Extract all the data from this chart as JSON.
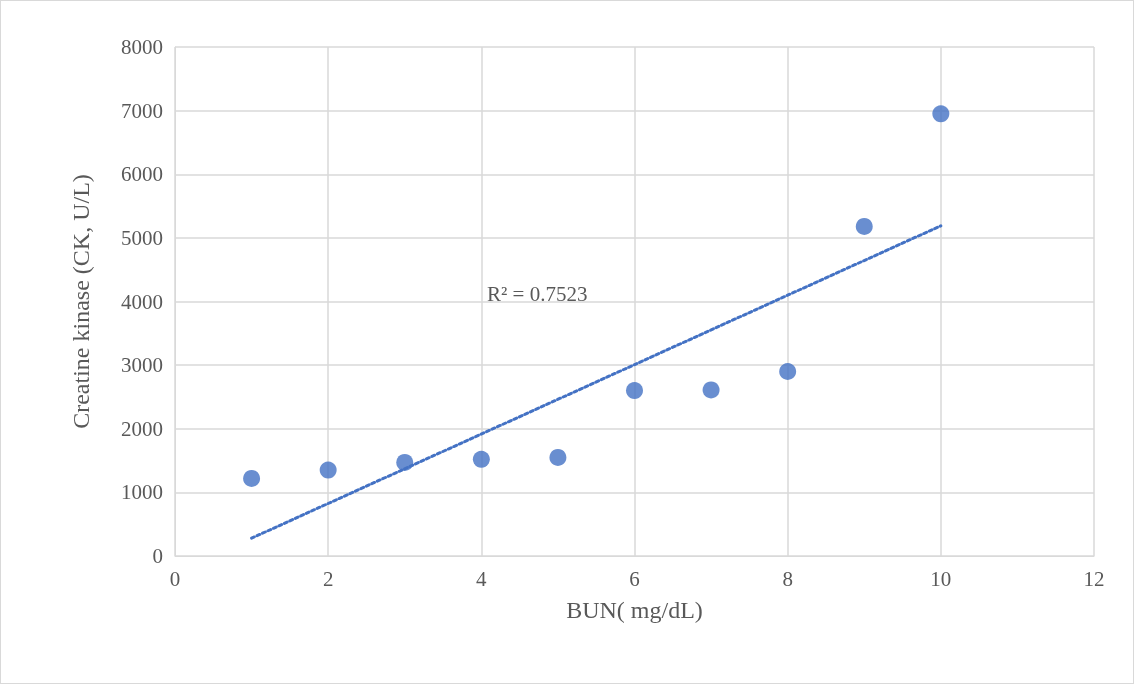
{
  "chart_data": {
    "type": "scatter",
    "xlabel": "BUN( mg/dL)",
    "ylabel": "Creatine kinase (CK, U/L)",
    "xlim": [
      0,
      12
    ],
    "xticks": [
      0,
      2,
      4,
      6,
      8,
      10,
      12
    ],
    "ylim": [
      0,
      8000
    ],
    "yticks": [
      0,
      1000,
      2000,
      3000,
      4000,
      5000,
      6000,
      7000,
      8000
    ],
    "grid": true,
    "series": [
      {
        "color": "#4472c4",
        "marker": "circle",
        "x": [
          1,
          2,
          3,
          4,
          5,
          6,
          7,
          8,
          9,
          10
        ],
        "values": [
          1220,
          1350,
          1470,
          1520,
          1550,
          2600,
          2610,
          2900,
          5180,
          6950
        ]
      },
      {
        "type": "line",
        "color": "#4472c4",
        "marker": "none",
        "line_style": "dotted",
        "x": [
          1,
          10
        ],
        "values": [
          280,
          5190
        ]
      }
    ],
    "annotations": [
      "R² = 0.7523"
    ]
  }
}
